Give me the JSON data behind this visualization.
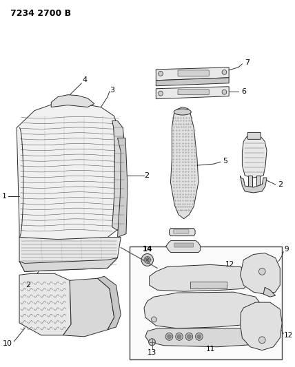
{
  "title": "7234 2700 B",
  "title_fontsize": 9,
  "title_fontweight": "bold",
  "bg_color": "#ffffff",
  "line_color": "#2a2a2a",
  "fill_color": "#e8e8e8",
  "fig_width": 4.28,
  "fig_height": 5.33,
  "dpi": 100,
  "lw": 0.7
}
